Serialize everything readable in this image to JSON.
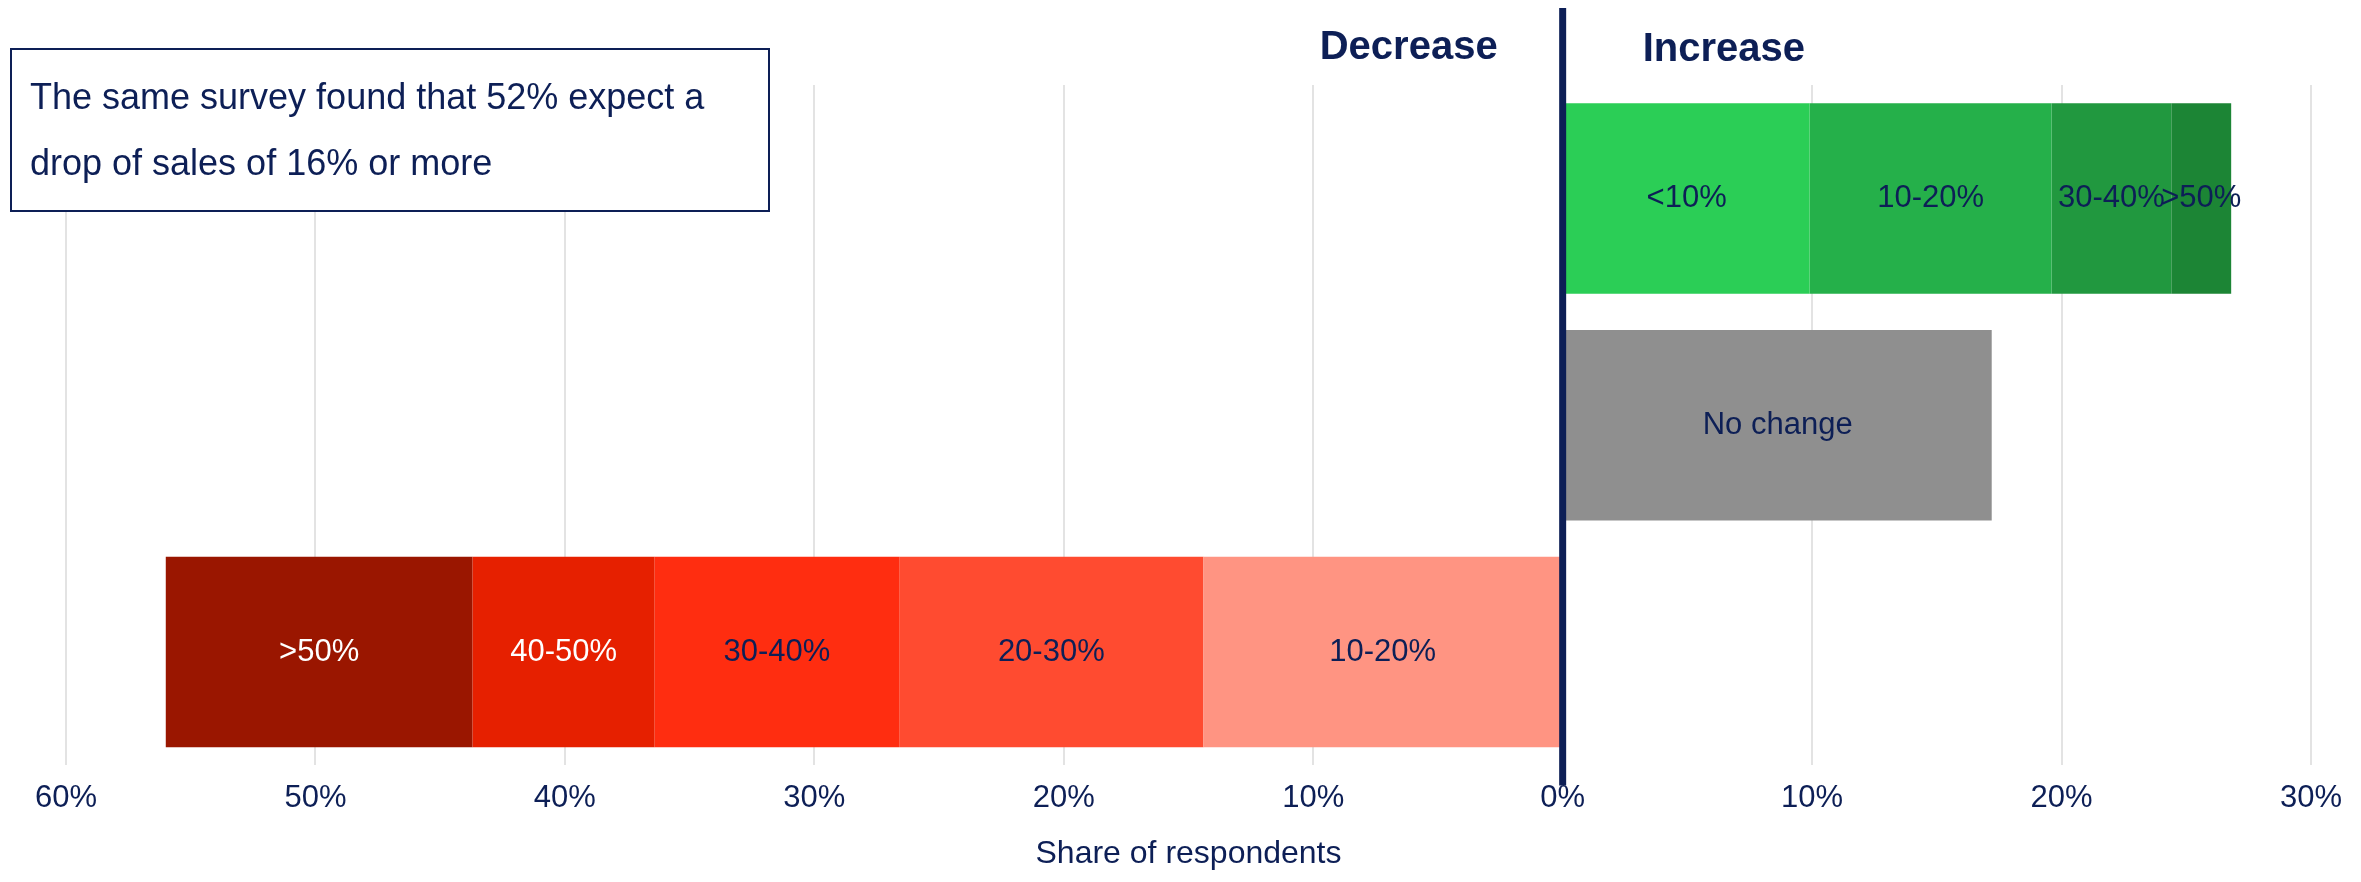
{
  "chart_data": {
    "type": "bar",
    "orientation": "horizontal",
    "stacked": true,
    "xlabel": "Share of respondents",
    "categories": [
      null,
      null,
      null
    ],
    "xlim": [
      -60,
      30
    ],
    "xticks": [
      {
        "value": -60,
        "label": "60%"
      },
      {
        "value": -50,
        "label": "50%"
      },
      {
        "value": -40,
        "label": "40%"
      },
      {
        "value": -30,
        "label": "30%"
      },
      {
        "value": -20,
        "label": "20%"
      },
      {
        "value": -10,
        "label": "10%"
      },
      {
        "value": 0,
        "label": "0%"
      },
      {
        "value": 10,
        "label": "10%"
      },
      {
        "value": 20,
        "label": "20%"
      },
      {
        "value": 30,
        "label": "30%"
      }
    ],
    "grid": "x",
    "legend": false,
    "series": [
      {
        "name": "<10%",
        "color": "#2bce56",
        "values": [
          9.9,
          null,
          null
        ]
      },
      {
        "name": "10-20%",
        "color": "#25b04a",
        "values": [
          9.7,
          null,
          null
        ]
      },
      {
        "name": "30-40%",
        "color": "#21983f",
        "values": [
          4.8,
          null,
          null
        ]
      },
      {
        "name": ">50%",
        "color": "#1c8535",
        "values": [
          2.4,
          null,
          null
        ]
      },
      {
        "name": "No change",
        "color": "#8f8f8f",
        "values": [
          null,
          17.2,
          null
        ]
      },
      {
        "name": "10-20%",
        "color": "#ff9482",
        "values": [
          null,
          null,
          -14.4
        ]
      },
      {
        "name": "20-30%",
        "color": "#ff4b30",
        "values": [
          null,
          null,
          -12.2
        ]
      },
      {
        "name": "30-40%",
        "color": "#ff2d10",
        "values": [
          null,
          null,
          -9.8
        ]
      },
      {
        "name": "40-50%",
        "color": "#e62000",
        "values": [
          null,
          null,
          -7.3
        ]
      },
      {
        "name": ">50%",
        "color": "#9a1600",
        "values": [
          null,
          null,
          -12.3
        ]
      }
    ],
    "ref_lines": [
      {
        "axis": "x",
        "value": 0,
        "color": "#0d1f56"
      }
    ],
    "annotations": [
      "The same survey found that 52% expect a drop of sales of 16% or more",
      "Decrease",
      "Increase"
    ]
  }
}
